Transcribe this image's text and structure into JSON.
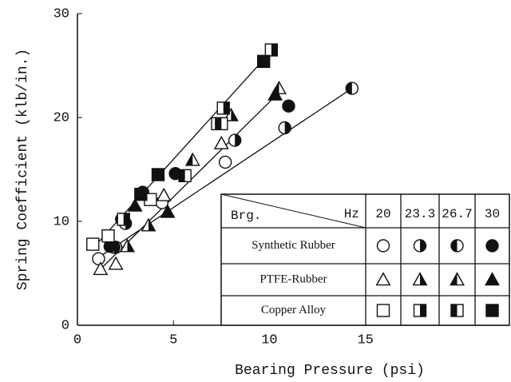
{
  "chart_data": {
    "type": "scatter",
    "xlabel": "Bearing Pressure (psi)",
    "ylabel": "Spring Coefficient (klb/in.)",
    "xlim": [
      0,
      22.5
    ],
    "ylim": [
      0,
      30
    ],
    "xticks": [
      0,
      5,
      10,
      15
    ],
    "yticks": [
      0,
      10,
      20,
      30
    ],
    "legend_header": {
      "left": "Brg.",
      "right": "Hz"
    },
    "frequencies": [
      "20",
      "23.3",
      "26.7",
      "30"
    ],
    "fills": [
      "open",
      "right-half",
      "left-half",
      "filled"
    ],
    "groups": [
      {
        "name": "Synthetic Rubber",
        "shape": "circle",
        "fit": {
          "x": [
            1.0,
            14.3
          ],
          "y": [
            6.4,
            22.8
          ]
        },
        "series": [
          {
            "x": [
              1.1,
              2.0,
              4.4,
              7.7
            ],
            "y": [
              6.4,
              7.5,
              11.8,
              15.7
            ]
          },
          {
            "x": [
              1.9,
              2.5,
              8.2,
              10.8
            ],
            "y": [
              7.5,
              9.8,
              17.8,
              19.0
            ]
          },
          {
            "x": [
              2.3,
              14.3
            ],
            "y": [
              10.2,
              22.8
            ]
          },
          {
            "x": [
              1.7,
              3.4,
              5.1,
              11.0
            ],
            "y": [
              7.6,
              12.8,
              14.6,
              21.1
            ]
          }
        ]
      },
      {
        "name": "PTFE-Rubber",
        "shape": "triangle",
        "fit": {
          "x": [
            1.2,
            10.5
          ],
          "y": [
            5.4,
            22.4
          ]
        },
        "series": [
          {
            "x": [
              1.2,
              2.0,
              4.5,
              7.5
            ],
            "y": [
              5.4,
              5.9,
              12.5,
              17.5
            ]
          },
          {
            "x": [
              2.6,
              3.7,
              8.0
            ],
            "y": [
              7.6,
              9.6,
              20.2
            ]
          },
          {
            "x": [
              6.0,
              10.5
            ],
            "y": [
              15.9,
              22.8
            ]
          },
          {
            "x": [
              3.0,
              4.7,
              10.3
            ],
            "y": [
              11.5,
              10.9,
              22.2
            ]
          }
        ]
      },
      {
        "name": "Copper Alloy",
        "shape": "square",
        "fit": {
          "x": [
            1.0,
            10.2
          ],
          "y": [
            7.8,
            26.6
          ]
        },
        "series": [
          {
            "x": [
              0.8,
              1.6,
              3.8,
              7.3
            ],
            "y": [
              7.8,
              8.6,
              12.1,
              19.4
            ]
          },
          {
            "x": [
              2.4,
              7.6,
              10.1
            ],
            "y": [
              10.2,
              20.9,
              26.5
            ]
          },
          {
            "x": [
              5.6,
              7.5
            ],
            "y": [
              14.4,
              19.4
            ]
          },
          {
            "x": [
              3.3,
              4.2,
              9.7
            ],
            "y": [
              12.6,
              14.5,
              25.4
            ]
          }
        ]
      }
    ]
  }
}
